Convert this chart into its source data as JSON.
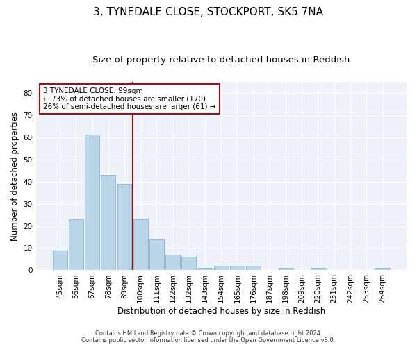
{
  "title1": "3, TYNEDALE CLOSE, STOCKPORT, SK5 7NA",
  "title2": "Size of property relative to detached houses in Reddish",
  "xlabel": "Distribution of detached houses by size in Reddish",
  "ylabel": "Number of detached properties",
  "categories": [
    "45sqm",
    "56sqm",
    "67sqm",
    "78sqm",
    "89sqm",
    "100sqm",
    "111sqm",
    "122sqm",
    "132sqm",
    "143sqm",
    "154sqm",
    "165sqm",
    "176sqm",
    "187sqm",
    "198sqm",
    "209sqm",
    "220sqm",
    "231sqm",
    "242sqm",
    "253sqm",
    "264sqm"
  ],
  "values": [
    9,
    23,
    61,
    43,
    39,
    23,
    14,
    7,
    6,
    1,
    2,
    2,
    2,
    0,
    1,
    0,
    1,
    0,
    0,
    0,
    1
  ],
  "bar_color": "#bad4e8",
  "bar_edge_color": "#8ab4d4",
  "annotation_line1": "3 TYNEDALE CLOSE: 99sqm",
  "annotation_line2": "← 73% of detached houses are smaller (170)",
  "annotation_line3": "26% of semi-detached houses are larger (61) →",
  "vline_color": "#9b1010",
  "annotation_box_edge": "#9b1010",
  "footer1": "Contains HM Land Registry data © Crown copyright and database right 2024.",
  "footer2": "Contains public sector information licensed under the Open Government Licence v3.0.",
  "ylim": [
    0,
    85
  ],
  "yticks": [
    0,
    10,
    20,
    30,
    40,
    50,
    60,
    70,
    80
  ],
  "bg_color": "#eef2f8",
  "fig_bg": "#ffffff",
  "title1_fontsize": 11,
  "title2_fontsize": 9.5,
  "axis_label_fontsize": 8.5,
  "tick_fontsize": 7.5,
  "footer_fontsize": 6,
  "annotation_fontsize": 7.5
}
